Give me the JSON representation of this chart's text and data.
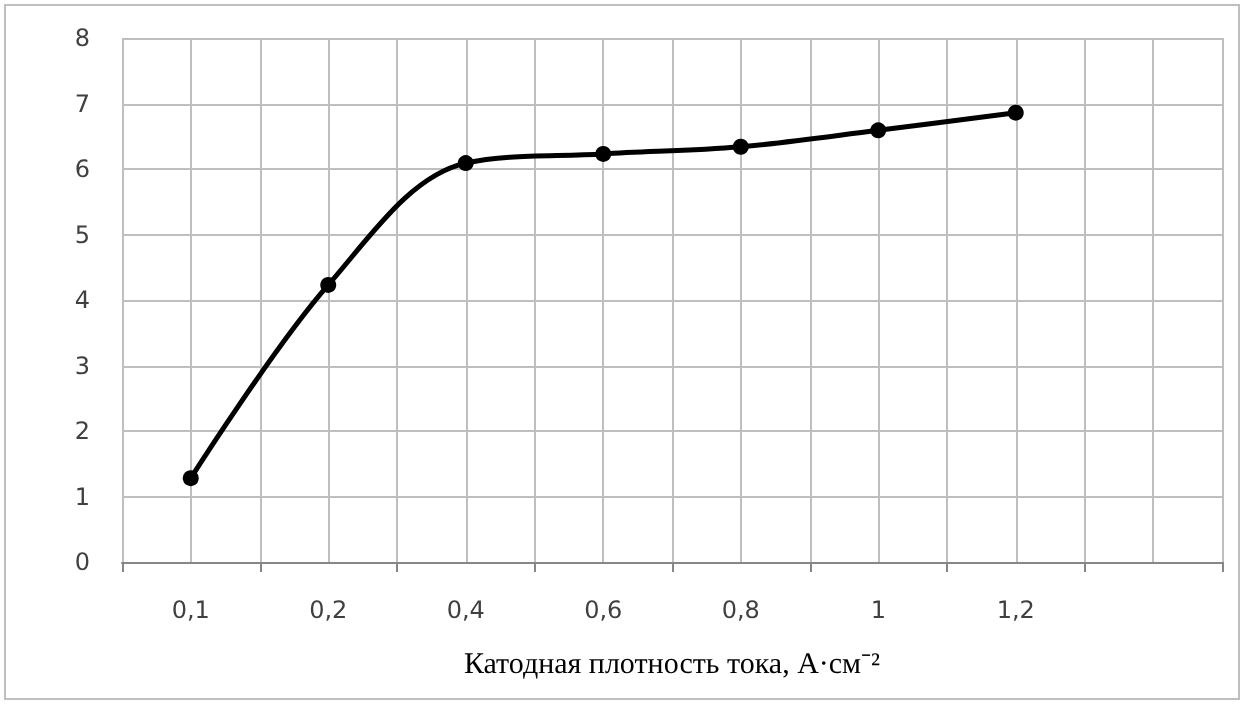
{
  "chart_data": {
    "type": "line",
    "xlabel": "Катодная плотность тока, А·см⁻²",
    "categories": [
      "0,1",
      "0,2",
      "0,4",
      "0,6",
      "0,8",
      "1",
      "1,2",
      null
    ],
    "series": [
      {
        "color": "#000000",
        "values": [
          1.28,
          4.23,
          6.09,
          6.23,
          6.34,
          6.59,
          6.86,
          null
        ]
      }
    ],
    "ylim": [
      0,
      8
    ],
    "yticks": [
      0,
      1,
      2,
      3,
      4,
      5,
      6,
      7,
      8
    ],
    "grid": true,
    "marker": "circle",
    "line_style": "solid"
  }
}
